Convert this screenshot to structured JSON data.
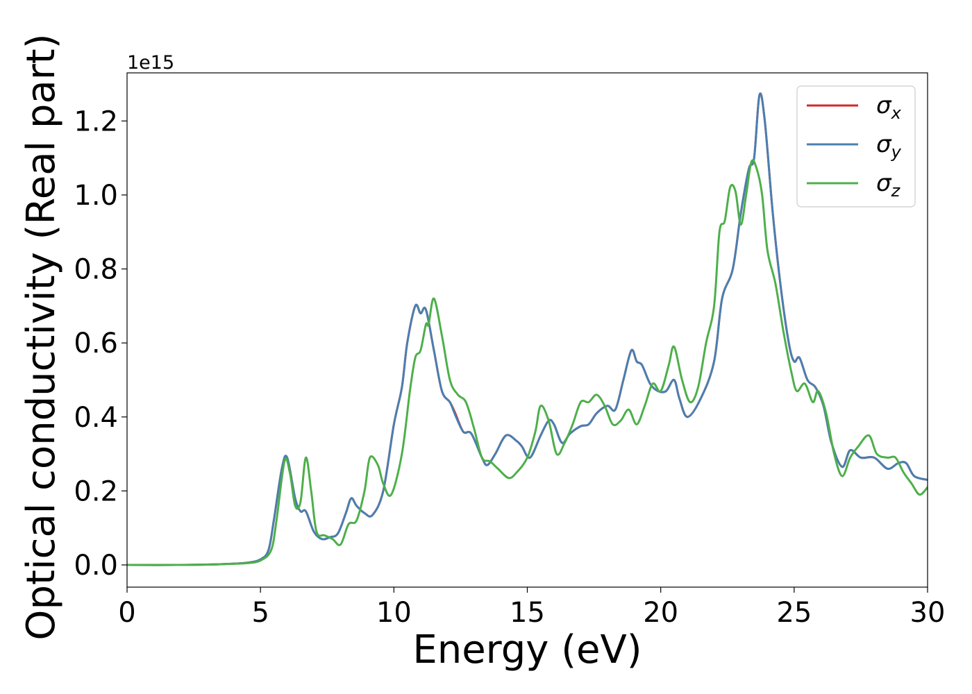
{
  "chart_data": {
    "type": "line",
    "xlabel": "Energy (eV)",
    "ylabel": "Optical conductivity (Real part)",
    "y_offset_label": "1e15",
    "xlim": [
      0,
      30
    ],
    "ylim": [
      -0.06,
      1.33
    ],
    "x_ticks": [
      0,
      5,
      10,
      15,
      20,
      25,
      30
    ],
    "x_tick_labels": [
      "0",
      "5",
      "10",
      "15",
      "20",
      "25",
      "30"
    ],
    "y_ticks": [
      0.0,
      0.2,
      0.4,
      0.6,
      0.8,
      1.0,
      1.2
    ],
    "y_tick_labels": [
      "0.0",
      "0.2",
      "0.4",
      "0.6",
      "0.8",
      "1.0",
      "1.2"
    ],
    "grid": false,
    "legend_position": "top-right",
    "series": [
      {
        "name": "σx",
        "symbol": "σ",
        "subscript": "x",
        "color": "#d62728",
        "points": [
          [
            0,
            0
          ],
          [
            2,
            0
          ],
          [
            3.5,
            0.002
          ],
          [
            4.5,
            0.006
          ],
          [
            5,
            0.015
          ],
          [
            5.3,
            0.04
          ],
          [
            5.5,
            0.12
          ],
          [
            5.8,
            0.26
          ],
          [
            6,
            0.29
          ],
          [
            6.3,
            0.18
          ],
          [
            6.5,
            0.145
          ],
          [
            6.7,
            0.145
          ],
          [
            7,
            0.09
          ],
          [
            7.3,
            0.07
          ],
          [
            7.6,
            0.075
          ],
          [
            7.9,
            0.085
          ],
          [
            8.2,
            0.14
          ],
          [
            8.4,
            0.18
          ],
          [
            8.6,
            0.16
          ],
          [
            8.9,
            0.14
          ],
          [
            9.2,
            0.135
          ],
          [
            9.6,
            0.2
          ],
          [
            10,
            0.38
          ],
          [
            10.3,
            0.48
          ],
          [
            10.5,
            0.6
          ],
          [
            10.8,
            0.7
          ],
          [
            11,
            0.68
          ],
          [
            11.2,
            0.69
          ],
          [
            11.5,
            0.58
          ],
          [
            11.8,
            0.47
          ],
          [
            12.1,
            0.44
          ],
          [
            12.3,
            0.41
          ],
          [
            12.6,
            0.36
          ],
          [
            12.9,
            0.355
          ],
          [
            13.3,
            0.29
          ],
          [
            13.5,
            0.27
          ],
          [
            13.8,
            0.3
          ],
          [
            14.2,
            0.35
          ],
          [
            14.6,
            0.335
          ],
          [
            14.8,
            0.32
          ],
          [
            15.1,
            0.29
          ],
          [
            15.5,
            0.35
          ],
          [
            15.8,
            0.39
          ],
          [
            16,
            0.38
          ],
          [
            16.3,
            0.33
          ],
          [
            16.6,
            0.355
          ],
          [
            17,
            0.375
          ],
          [
            17.3,
            0.38
          ],
          [
            17.6,
            0.41
          ],
          [
            18,
            0.43
          ],
          [
            18.3,
            0.42
          ],
          [
            18.6,
            0.5
          ],
          [
            18.9,
            0.58
          ],
          [
            19.1,
            0.55
          ],
          [
            19.3,
            0.54
          ],
          [
            19.6,
            0.49
          ],
          [
            19.9,
            0.47
          ],
          [
            20.2,
            0.47
          ],
          [
            20.5,
            0.5
          ],
          [
            20.7,
            0.45
          ],
          [
            21,
            0.4
          ],
          [
            21.5,
            0.45
          ],
          [
            22,
            0.55
          ],
          [
            22.3,
            0.72
          ],
          [
            22.7,
            0.8
          ],
          [
            23,
            0.95
          ],
          [
            23.3,
            1.07
          ],
          [
            23.5,
            1.1
          ],
          [
            23.7,
            1.27
          ],
          [
            23.9,
            1.2
          ],
          [
            24.2,
            0.95
          ],
          [
            24.5,
            0.75
          ],
          [
            24.8,
            0.6
          ],
          [
            25,
            0.55
          ],
          [
            25.2,
            0.56
          ],
          [
            25.5,
            0.5
          ],
          [
            25.8,
            0.48
          ],
          [
            26.1,
            0.43
          ],
          [
            26.4,
            0.33
          ],
          [
            26.8,
            0.265
          ],
          [
            27.1,
            0.31
          ],
          [
            27.5,
            0.29
          ],
          [
            28,
            0.29
          ],
          [
            28.5,
            0.26
          ],
          [
            28.9,
            0.275
          ],
          [
            29.2,
            0.275
          ],
          [
            29.5,
            0.24
          ],
          [
            30,
            0.23
          ]
        ]
      },
      {
        "name": "σy",
        "symbol": "σ",
        "subscript": "y",
        "color": "#4a7fb0",
        "points": [
          [
            0,
            0
          ],
          [
            2,
            0
          ],
          [
            3.5,
            0.002
          ],
          [
            4.5,
            0.006
          ],
          [
            5,
            0.015
          ],
          [
            5.3,
            0.04
          ],
          [
            5.5,
            0.12
          ],
          [
            5.8,
            0.26
          ],
          [
            6,
            0.29
          ],
          [
            6.3,
            0.18
          ],
          [
            6.5,
            0.145
          ],
          [
            6.7,
            0.145
          ],
          [
            7,
            0.09
          ],
          [
            7.3,
            0.07
          ],
          [
            7.6,
            0.075
          ],
          [
            7.9,
            0.085
          ],
          [
            8.2,
            0.14
          ],
          [
            8.4,
            0.18
          ],
          [
            8.6,
            0.16
          ],
          [
            8.9,
            0.14
          ],
          [
            9.2,
            0.135
          ],
          [
            9.6,
            0.2
          ],
          [
            10,
            0.38
          ],
          [
            10.3,
            0.48
          ],
          [
            10.5,
            0.6
          ],
          [
            10.8,
            0.7
          ],
          [
            11,
            0.68
          ],
          [
            11.2,
            0.69
          ],
          [
            11.5,
            0.58
          ],
          [
            11.8,
            0.47
          ],
          [
            12.1,
            0.44
          ],
          [
            12.3,
            0.405
          ],
          [
            12.6,
            0.36
          ],
          [
            12.9,
            0.355
          ],
          [
            13.3,
            0.29
          ],
          [
            13.5,
            0.27
          ],
          [
            13.8,
            0.3
          ],
          [
            14.2,
            0.35
          ],
          [
            14.6,
            0.335
          ],
          [
            14.8,
            0.32
          ],
          [
            15.1,
            0.29
          ],
          [
            15.5,
            0.35
          ],
          [
            15.8,
            0.39
          ],
          [
            16,
            0.38
          ],
          [
            16.3,
            0.33
          ],
          [
            16.6,
            0.355
          ],
          [
            17,
            0.375
          ],
          [
            17.3,
            0.38
          ],
          [
            17.6,
            0.41
          ],
          [
            18,
            0.43
          ],
          [
            18.3,
            0.42
          ],
          [
            18.6,
            0.5
          ],
          [
            18.9,
            0.58
          ],
          [
            19.1,
            0.55
          ],
          [
            19.3,
            0.54
          ],
          [
            19.6,
            0.49
          ],
          [
            19.9,
            0.47
          ],
          [
            20.2,
            0.47
          ],
          [
            20.5,
            0.5
          ],
          [
            20.7,
            0.45
          ],
          [
            21,
            0.4
          ],
          [
            21.5,
            0.45
          ],
          [
            22,
            0.55
          ],
          [
            22.3,
            0.72
          ],
          [
            22.7,
            0.8
          ],
          [
            23,
            0.95
          ],
          [
            23.3,
            1.07
          ],
          [
            23.5,
            1.1
          ],
          [
            23.7,
            1.27
          ],
          [
            23.9,
            1.2
          ],
          [
            24.2,
            0.95
          ],
          [
            24.5,
            0.75
          ],
          [
            24.8,
            0.6
          ],
          [
            25,
            0.55
          ],
          [
            25.2,
            0.56
          ],
          [
            25.5,
            0.5
          ],
          [
            25.8,
            0.48
          ],
          [
            26.1,
            0.43
          ],
          [
            26.4,
            0.33
          ],
          [
            26.8,
            0.265
          ],
          [
            27.1,
            0.31
          ],
          [
            27.5,
            0.29
          ],
          [
            28,
            0.29
          ],
          [
            28.5,
            0.26
          ],
          [
            28.9,
            0.275
          ],
          [
            29.2,
            0.275
          ],
          [
            29.5,
            0.24
          ],
          [
            30,
            0.23
          ]
        ]
      },
      {
        "name": "σz",
        "symbol": "σ",
        "subscript": "z",
        "color": "#4daf4a",
        "points": [
          [
            0,
            0
          ],
          [
            2,
            0
          ],
          [
            3.5,
            0.002
          ],
          [
            4.5,
            0.005
          ],
          [
            5,
            0.012
          ],
          [
            5.4,
            0.04
          ],
          [
            5.6,
            0.12
          ],
          [
            5.9,
            0.28
          ],
          [
            6.1,
            0.25
          ],
          [
            6.3,
            0.16
          ],
          [
            6.5,
            0.17
          ],
          [
            6.7,
            0.29
          ],
          [
            6.9,
            0.2
          ],
          [
            7.1,
            0.09
          ],
          [
            7.4,
            0.08
          ],
          [
            7.7,
            0.07
          ],
          [
            8,
            0.055
          ],
          [
            8.3,
            0.11
          ],
          [
            8.6,
            0.12
          ],
          [
            8.9,
            0.2
          ],
          [
            9.1,
            0.29
          ],
          [
            9.4,
            0.27
          ],
          [
            9.6,
            0.22
          ],
          [
            9.9,
            0.19
          ],
          [
            10.3,
            0.3
          ],
          [
            10.6,
            0.47
          ],
          [
            10.8,
            0.56
          ],
          [
            11,
            0.58
          ],
          [
            11.2,
            0.65
          ],
          [
            11.3,
            0.65
          ],
          [
            11.5,
            0.72
          ],
          [
            11.8,
            0.62
          ],
          [
            12.1,
            0.5
          ],
          [
            12.4,
            0.46
          ],
          [
            12.7,
            0.44
          ],
          [
            13,
            0.37
          ],
          [
            13.3,
            0.29
          ],
          [
            13.6,
            0.28
          ],
          [
            13.9,
            0.26
          ],
          [
            14.3,
            0.235
          ],
          [
            14.6,
            0.25
          ],
          [
            15,
            0.29
          ],
          [
            15.3,
            0.36
          ],
          [
            15.5,
            0.43
          ],
          [
            15.8,
            0.39
          ],
          [
            16.1,
            0.3
          ],
          [
            16.4,
            0.33
          ],
          [
            16.7,
            0.38
          ],
          [
            17,
            0.44
          ],
          [
            17.3,
            0.44
          ],
          [
            17.6,
            0.46
          ],
          [
            17.9,
            0.43
          ],
          [
            18.2,
            0.38
          ],
          [
            18.5,
            0.39
          ],
          [
            18.8,
            0.42
          ],
          [
            19.1,
            0.38
          ],
          [
            19.4,
            0.43
          ],
          [
            19.7,
            0.49
          ],
          [
            20,
            0.47
          ],
          [
            20.3,
            0.54
          ],
          [
            20.5,
            0.59
          ],
          [
            20.8,
            0.5
          ],
          [
            21.1,
            0.44
          ],
          [
            21.4,
            0.48
          ],
          [
            21.7,
            0.6
          ],
          [
            22,
            0.7
          ],
          [
            22.2,
            0.9
          ],
          [
            22.4,
            0.93
          ],
          [
            22.6,
            1.02
          ],
          [
            22.8,
            1.01
          ],
          [
            23,
            0.92
          ],
          [
            23.2,
            1.0
          ],
          [
            23.4,
            1.09
          ],
          [
            23.6,
            1.07
          ],
          [
            23.8,
            1.0
          ],
          [
            24,
            0.85
          ],
          [
            24.3,
            0.76
          ],
          [
            24.6,
            0.63
          ],
          [
            24.9,
            0.52
          ],
          [
            25.1,
            0.47
          ],
          [
            25.4,
            0.49
          ],
          [
            25.7,
            0.44
          ],
          [
            25.9,
            0.47
          ],
          [
            26.2,
            0.41
          ],
          [
            26.5,
            0.3
          ],
          [
            26.8,
            0.24
          ],
          [
            27.1,
            0.29
          ],
          [
            27.4,
            0.32
          ],
          [
            27.8,
            0.35
          ],
          [
            28.1,
            0.3
          ],
          [
            28.5,
            0.29
          ],
          [
            28.8,
            0.29
          ],
          [
            29.1,
            0.25
          ],
          [
            29.4,
            0.22
          ],
          [
            29.7,
            0.19
          ],
          [
            30,
            0.21
          ]
        ]
      }
    ]
  }
}
